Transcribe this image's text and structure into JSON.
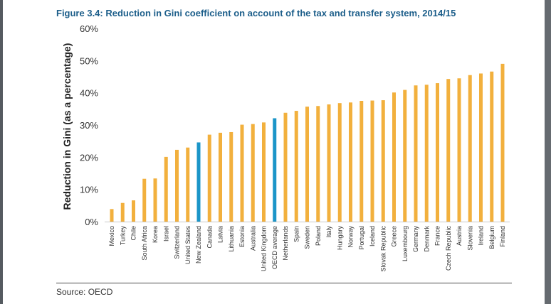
{
  "chart_data": {
    "type": "bar",
    "title": "Figure 3.4: Reduction in Gini coefficient on account of the tax and transfer system, 2014/15",
    "xlabel": "",
    "ylabel": "Reduction in Gini (as a percentage)",
    "ylim": [
      0,
      60
    ],
    "yticks": [
      "0%",
      "10%",
      "20%",
      "30%",
      "40%",
      "50%",
      "60%"
    ],
    "grid": false,
    "default_color": "#f2b03d",
    "highlight_color": "#1b95c8",
    "highlighted": [
      "New Zealand",
      "OECD average"
    ],
    "categories": [
      "Mexico",
      "Turkey",
      "Chile",
      "South Africa",
      "Korea",
      "Israel",
      "Switzerland",
      "United States",
      "New Zealand",
      "Canada",
      "Latvia",
      "Lithuania",
      "Estonia",
      "Australia",
      "United Kingdom",
      "OECD average",
      "Netherlands",
      "Spain",
      "Sweden",
      "Poland",
      "Italy",
      "Hungary",
      "Norway",
      "Portugal",
      "Iceland",
      "Slovak Republic",
      "Greece",
      "Luxembourg",
      "Germany",
      "Denmark",
      "France",
      "Czech Republic",
      "Austria",
      "Slovenia",
      "Ireland",
      "Belgium",
      "Finland"
    ],
    "values": [
      3.9,
      5.8,
      6.6,
      13.3,
      13.4,
      20.1,
      22.3,
      23.0,
      24.6,
      27.0,
      27.6,
      27.8,
      30.1,
      30.3,
      30.8,
      32.1,
      33.8,
      34.4,
      35.7,
      35.9,
      36.4,
      36.8,
      37.0,
      37.5,
      37.6,
      37.7,
      40.1,
      40.9,
      42.3,
      42.5,
      43.0,
      44.3,
      44.5,
      45.5,
      46.0,
      46.6,
      49.0
    ]
  },
  "source": "Source: OECD"
}
